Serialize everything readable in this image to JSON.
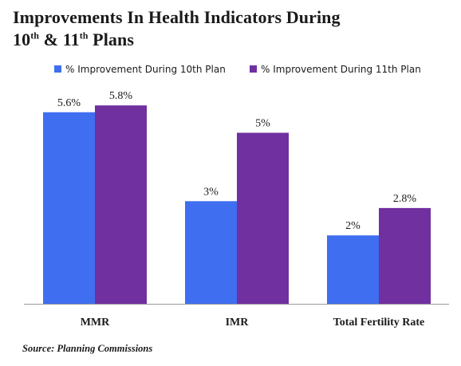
{
  "title": {
    "line1": "Improvements In Health Indicators During",
    "part_10": "10",
    "sup_10": "th",
    "part_amp": " & 11",
    "sup_11": "th",
    "part_plans": " Plans"
  },
  "source": "Source: Planning Commissions",
  "chart_data": {
    "type": "bar",
    "title": "Improvements In Health Indicators During 10th & 11th Plans",
    "categories": [
      "MMR",
      "IMR",
      "Total Fertility Rate"
    ],
    "series": [
      {
        "name": "% Improvement During 10th Plan",
        "values": [
          5.6,
          3,
          2
        ],
        "labels": [
          "5.6%",
          "3%",
          "2%"
        ],
        "color": "#3f6ef0"
      },
      {
        "name": "% Improvement During 11th Plan",
        "values": [
          5.8,
          5,
          2.8
        ],
        "labels": [
          "5.8%",
          "5%",
          "2.8%"
        ],
        "color": "#7030a0"
      }
    ],
    "ylim": [
      0,
      7
    ],
    "grid": false,
    "legend": "top"
  }
}
